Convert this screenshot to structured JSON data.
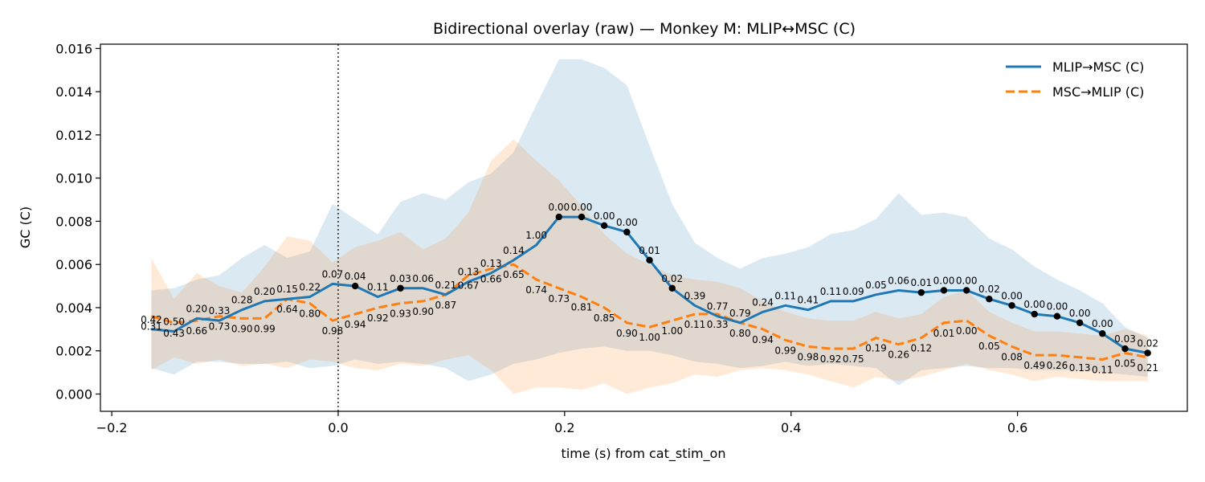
{
  "chart_data": {
    "type": "line",
    "title": "Bidirectional overlay (raw) — Monkey M: MLIP↔MSC (C)",
    "xlabel": "time (s) from cat_stim_on",
    "ylabel": "GC (C)",
    "xlim": [
      -0.21,
      0.75
    ],
    "ylim": [
      -0.0008,
      0.0162
    ],
    "xticks": [
      -0.2,
      0.0,
      0.2,
      0.4,
      0.6
    ],
    "xtick_labels": [
      "−0.2",
      "0.0",
      "0.2",
      "0.4",
      "0.6"
    ],
    "yticks": [
      0.0,
      0.002,
      0.004,
      0.006,
      0.008,
      0.01,
      0.012,
      0.014,
      0.016
    ],
    "ytick_labels": [
      "0.000",
      "0.002",
      "0.004",
      "0.006",
      "0.008",
      "0.010",
      "0.012",
      "0.014",
      "0.016"
    ],
    "vline_x": 0.0,
    "grid": false,
    "legend_position": "top-right",
    "x": [
      -0.165,
      -0.145,
      -0.125,
      -0.105,
      -0.085,
      -0.065,
      -0.045,
      -0.025,
      -0.005,
      0.015,
      0.035,
      0.055,
      0.075,
      0.095,
      0.115,
      0.135,
      0.155,
      0.175,
      0.195,
      0.215,
      0.235,
      0.255,
      0.275,
      0.295,
      0.315,
      0.335,
      0.355,
      0.375,
      0.395,
      0.415,
      0.435,
      0.455,
      0.475,
      0.495,
      0.515,
      0.535,
      0.555,
      0.575,
      0.595,
      0.615,
      0.635,
      0.655,
      0.675,
      0.695,
      0.715
    ],
    "series": [
      {
        "name": "MLIP→MSC (C)",
        "color": "#1f77b4",
        "dash": "solid",
        "values": [
          0.003,
          0.0029,
          0.0035,
          0.0034,
          0.0039,
          0.0043,
          0.0044,
          0.0045,
          0.0051,
          0.005,
          0.0045,
          0.0049,
          0.0049,
          0.0046,
          0.0052,
          0.0056,
          0.0062,
          0.0069,
          0.0082,
          0.0082,
          0.0078,
          0.0075,
          0.0062,
          0.0049,
          0.0041,
          0.0036,
          0.0033,
          0.0038,
          0.0041,
          0.0039,
          0.0043,
          0.0043,
          0.0046,
          0.0048,
          0.0047,
          0.0048,
          0.0048,
          0.0044,
          0.0041,
          0.0037,
          0.0036,
          0.0033,
          0.0028,
          0.0021,
          0.0019
        ],
        "band_upper": [
          0.0048,
          0.0049,
          0.0053,
          0.0055,
          0.0063,
          0.0069,
          0.0063,
          0.0066,
          0.0088,
          0.0081,
          0.0074,
          0.0089,
          0.0093,
          0.009,
          0.0098,
          0.0102,
          0.0112,
          0.0134,
          0.0155,
          0.0155,
          0.0151,
          0.0143,
          0.0115,
          0.0088,
          0.007,
          0.0063,
          0.0058,
          0.0063,
          0.0065,
          0.0068,
          0.0074,
          0.0076,
          0.0081,
          0.0093,
          0.0083,
          0.0084,
          0.0082,
          0.0072,
          0.0067,
          0.0059,
          0.0053,
          0.0048,
          0.0042,
          0.0031,
          0.0026
        ],
        "band_lower": [
          0.0012,
          0.0009,
          0.0015,
          0.0015,
          0.0014,
          0.0014,
          0.0015,
          0.0012,
          0.0013,
          0.0016,
          0.0014,
          0.0015,
          0.0014,
          0.0012,
          0.0006,
          0.0009,
          0.0014,
          0.0016,
          0.0019,
          0.0021,
          0.0022,
          0.002,
          0.002,
          0.0018,
          0.0015,
          0.0014,
          0.0012,
          0.0013,
          0.0015,
          0.0013,
          0.0014,
          0.0013,
          0.0012,
          0.0004,
          0.0011,
          0.0012,
          0.0013,
          0.0012,
          0.0012,
          0.0011,
          0.0011,
          0.0011,
          0.001,
          0.0009,
          0.0008
        ],
        "p_labels": [
          "0.42",
          "0.50",
          "0.20",
          "0.33",
          "0.28",
          "0.20",
          "0.15",
          "0.22",
          "0.07",
          "0.04",
          "0.11",
          "0.03",
          "0.06",
          "0.21",
          "0.13",
          "0.13",
          "0.14",
          "1.00",
          "0.00",
          "0.00",
          "0.00",
          "0.00",
          "0.01",
          "0.02",
          "0.39",
          "0.77",
          "0.79",
          "0.24",
          "0.11",
          "0.41",
          "0.11",
          "0.09",
          "0.05",
          "0.06",
          "0.01",
          "0.00",
          "0.00",
          "0.02",
          "0.00",
          "0.00",
          "0.00",
          "0.00",
          "0.00",
          "0.03",
          "0.02"
        ],
        "significant": [
          false,
          false,
          false,
          false,
          false,
          false,
          false,
          false,
          false,
          true,
          false,
          true,
          false,
          false,
          false,
          false,
          false,
          false,
          true,
          true,
          true,
          true,
          true,
          true,
          false,
          false,
          false,
          false,
          false,
          false,
          false,
          false,
          false,
          false,
          true,
          true,
          true,
          true,
          true,
          true,
          true,
          true,
          true,
          true,
          true
        ]
      },
      {
        "name": "MSC→MLIP (C)",
        "color": "#ff7f0e",
        "dash": "dashed",
        "values": [
          0.0036,
          0.0033,
          0.0034,
          0.0036,
          0.0035,
          0.0035,
          0.0044,
          0.0042,
          0.0034,
          0.0037,
          0.004,
          0.0042,
          0.0043,
          0.0046,
          0.0055,
          0.0058,
          0.006,
          0.0053,
          0.0049,
          0.0045,
          0.004,
          0.0033,
          0.0031,
          0.0034,
          0.0037,
          0.0037,
          0.0033,
          0.003,
          0.0025,
          0.0022,
          0.0021,
          0.0021,
          0.0026,
          0.0023,
          0.0026,
          0.0033,
          0.0034,
          0.0027,
          0.0022,
          0.0018,
          0.0018,
          0.0017,
          0.0016,
          0.0019,
          0.0017
        ],
        "band_upper": [
          0.0063,
          0.0044,
          0.0056,
          0.005,
          0.0047,
          0.0059,
          0.0073,
          0.0071,
          0.0061,
          0.0068,
          0.0071,
          0.0075,
          0.0067,
          0.0072,
          0.0084,
          0.0108,
          0.0118,
          0.0108,
          0.0099,
          0.0087,
          0.0074,
          0.0065,
          0.006,
          0.0055,
          0.0053,
          0.0052,
          0.0049,
          0.0043,
          0.0038,
          0.0035,
          0.0034,
          0.0034,
          0.0038,
          0.0035,
          0.0037,
          0.0045,
          0.0048,
          0.0038,
          0.0033,
          0.0029,
          0.0029,
          0.0028,
          0.0027,
          0.003,
          0.0027
        ],
        "band_lower": [
          0.0011,
          0.0017,
          0.0014,
          0.0016,
          0.0013,
          0.0014,
          0.0012,
          0.0016,
          0.0015,
          0.0012,
          0.0011,
          0.0014,
          0.0013,
          0.0016,
          0.0018,
          0.0011,
          0.0,
          0.0003,
          0.0003,
          0.0002,
          0.0005,
          0.0,
          0.0003,
          0.0005,
          0.0009,
          0.0008,
          0.0011,
          0.0012,
          0.0011,
          0.0009,
          0.0006,
          0.0003,
          0.0008,
          0.0006,
          0.0008,
          0.0011,
          0.0014,
          0.0011,
          0.0009,
          0.0006,
          0.0008,
          0.0007,
          0.0006,
          0.0006,
          0.0006
        ],
        "p_labels": [
          "0.31",
          "0.43",
          "0.66",
          "0.73",
          "0.90",
          "0.99",
          "0.64",
          "0.80",
          "0.98",
          "0.94",
          "0.92",
          "0.93",
          "0.90",
          "0.87",
          "0.67",
          "0.66",
          "0.65",
          "0.74",
          "0.73",
          "0.81",
          "0.85",
          "0.90",
          "1.00",
          "1.00",
          "0.11",
          "0.33",
          "0.80",
          "0.94",
          "0.99",
          "0.98",
          "0.92",
          "0.75",
          "0.19",
          "0.26",
          "0.12",
          "0.01",
          "0.00",
          "0.05",
          "0.08",
          "0.49",
          "0.26",
          "0.13",
          "0.11",
          "0.05",
          "0.21"
        ]
      }
    ]
  }
}
